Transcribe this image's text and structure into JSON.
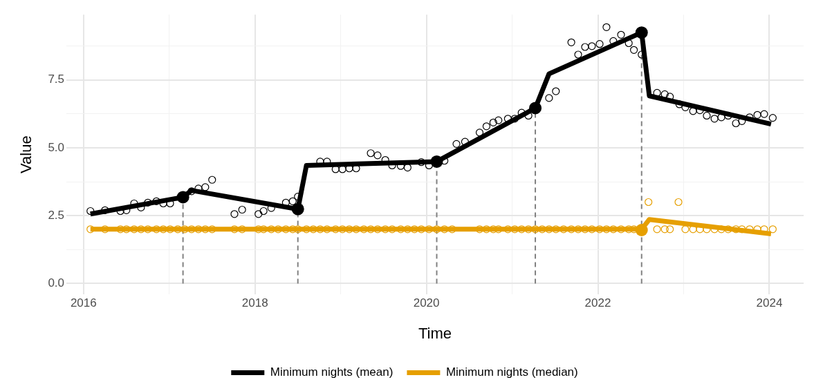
{
  "chart_data": {
    "type": "line",
    "xlabel": "Time",
    "ylabel": "Value",
    "xlim": [
      2015.8,
      2024.4
    ],
    "ylim": [
      -0.4,
      9.9
    ],
    "xticks": [
      2016,
      {
        "value": 2017,
        "label": null
      },
      2018,
      {
        "value": 2019,
        "label": null
      },
      2020,
      {
        "value": 2021,
        "label": null
      },
      2022,
      {
        "value": 2023,
        "label": null
      },
      2024
    ],
    "yticks": [
      {
        "value": 0,
        "label": "0.0"
      },
      {
        "value": 1.25,
        "label": null
      },
      2.5,
      {
        "value": 3.75,
        "label": null
      },
      {
        "value": 5,
        "label": "5.0"
      },
      {
        "value": 6.25,
        "label": null
      },
      7.5,
      {
        "value": 8.75,
        "label": null
      }
    ],
    "grid": true,
    "legend": "bottom",
    "series": [
      {
        "type": "scatter",
        "marker": "circle",
        "color": "#000000",
        "x": [
          2016.08,
          2016.25,
          2016.43,
          2016.5,
          2016.59,
          2016.67,
          2016.75,
          2016.85,
          2016.93,
          2017.01,
          2017.26,
          2017.34,
          2017.42,
          2017.5,
          2017.76,
          2017.85,
          2018.04,
          2018.1,
          2018.19,
          2018.36,
          2018.44,
          2018.5,
          2018.76,
          2018.84,
          2018.94,
          2019.02,
          2019.1,
          2019.18,
          2019.35,
          2019.43,
          2019.52,
          2019.6,
          2019.7,
          2019.78,
          2019.94,
          2020.03,
          2020.21,
          2020.35,
          2020.45,
          2020.62,
          2020.7,
          2020.78,
          2020.84,
          2020.95,
          2021.03,
          2021.11,
          2021.19,
          2021.43,
          2021.51,
          2021.69,
          2021.77,
          2021.85,
          2021.93,
          2022.02,
          2022.1,
          2022.18,
          2022.27,
          2022.36,
          2022.42,
          2022.51,
          2022.69,
          2022.78,
          2022.84,
          2022.95,
          2023.02,
          2023.11,
          2023.19,
          2023.27,
          2023.36,
          2023.44,
          2023.52,
          2023.61,
          2023.68,
          2023.77,
          2023.86,
          2023.94,
          2024.04
        ],
        "values": [
          2.67,
          2.7,
          2.67,
          2.7,
          2.95,
          2.8,
          2.98,
          3.03,
          2.95,
          2.95,
          3.4,
          3.5,
          3.55,
          3.82,
          2.56,
          2.72,
          2.56,
          2.67,
          2.78,
          2.98,
          3.03,
          3.2,
          4.49,
          4.49,
          4.21,
          4.21,
          4.24,
          4.24,
          4.8,
          4.72,
          4.55,
          4.35,
          4.33,
          4.27,
          4.47,
          4.35,
          4.52,
          5.14,
          5.22,
          5.56,
          5.79,
          5.93,
          6.01,
          6.07,
          6.07,
          6.29,
          6.18,
          6.83,
          7.08,
          8.88,
          8.43,
          8.71,
          8.74,
          8.82,
          9.44,
          8.93,
          9.16,
          8.85,
          8.6,
          8.43,
          7.02,
          6.97,
          6.88,
          6.6,
          6.49,
          6.35,
          6.38,
          6.18,
          6.07,
          6.12,
          6.18,
          5.9,
          5.98,
          6.12,
          6.21,
          6.24,
          6.1
        ]
      },
      {
        "type": "scatter",
        "marker": "circle",
        "color": "#e69f00",
        "x": [
          2016.08,
          2016.25,
          2016.43,
          2016.5,
          2016.59,
          2016.67,
          2016.75,
          2016.85,
          2016.93,
          2017.01,
          2017.1,
          2017.18,
          2017.26,
          2017.34,
          2017.42,
          2017.5,
          2017.76,
          2017.85,
          2018.04,
          2018.1,
          2018.19,
          2018.27,
          2018.36,
          2018.44,
          2018.5,
          2018.6,
          2018.68,
          2018.76,
          2018.84,
          2018.94,
          2019.02,
          2019.1,
          2019.18,
          2019.27,
          2019.35,
          2019.43,
          2019.52,
          2019.6,
          2019.7,
          2019.78,
          2019.86,
          2019.94,
          2020.03,
          2020.12,
          2020.21,
          2020.3,
          2020.62,
          2020.7,
          2020.78,
          2020.84,
          2020.95,
          2021.03,
          2021.11,
          2021.19,
          2021.27,
          2021.35,
          2021.43,
          2021.51,
          2021.6,
          2021.69,
          2021.77,
          2021.85,
          2021.93,
          2022.02,
          2022.1,
          2022.18,
          2022.27,
          2022.36,
          2022.42,
          2022.59,
          2022.69,
          2022.78,
          2022.84,
          2022.94,
          2023.02,
          2023.11,
          2023.19,
          2023.27,
          2023.36,
          2023.44,
          2023.52,
          2023.61,
          2023.68,
          2023.77,
          2023.86,
          2023.94,
          2024.04
        ],
        "values": [
          2,
          2,
          2,
          2,
          2,
          2,
          2,
          2,
          2,
          2,
          2,
          2,
          2,
          2,
          2,
          2,
          2,
          2,
          2,
          2,
          2,
          2,
          2,
          2,
          2,
          2,
          2,
          2,
          2,
          2,
          2,
          2,
          2,
          2,
          2,
          2,
          2,
          2,
          2,
          2,
          2,
          2,
          2,
          2,
          2,
          2,
          2,
          2,
          2,
          2,
          2,
          2,
          2,
          2,
          2,
          2,
          2,
          2,
          2,
          2,
          2,
          2,
          2,
          2,
          2,
          2,
          2,
          2,
          2,
          3,
          2,
          2,
          2,
          3,
          2,
          2,
          2,
          2,
          2,
          2,
          2,
          2,
          2,
          2,
          2,
          2,
          2
        ]
      },
      {
        "type": "line",
        "line_style": "dashed",
        "color": "#808080",
        "x": [
          2017.16,
          2017.16
        ],
        "values": [
          0,
          3.18
        ]
      },
      {
        "type": "line",
        "line_style": "dashed",
        "color": "#808080",
        "x": [
          2018.5,
          2018.5
        ],
        "values": [
          0,
          2.74
        ]
      },
      {
        "type": "line",
        "line_style": "dashed",
        "color": "#808080",
        "x": [
          2020.12,
          2020.12
        ],
        "values": [
          0,
          4.49
        ]
      },
      {
        "type": "line",
        "line_style": "dashed",
        "color": "#808080",
        "x": [
          2021.27,
          2021.27
        ],
        "values": [
          0,
          6.46
        ]
      },
      {
        "type": "line",
        "line_style": "dashed",
        "color": "#808080",
        "x": [
          2022.51,
          2022.51
        ],
        "values": [
          0,
          9.24
        ]
      },
      {
        "name": "Minimum nights (mean)",
        "type": "line",
        "line_style": "solid",
        "color": "#000000",
        "x": [
          2016.08,
          2017.16,
          2017.26,
          2018.5,
          2018.6,
          2020.12,
          2021.27,
          2021.43,
          2022.51,
          2022.6,
          2024.02
        ],
        "values": [
          2.56,
          3.18,
          3.43,
          2.74,
          4.35,
          4.49,
          6.46,
          7.72,
          9.24,
          6.91,
          5.87
        ]
      },
      {
        "name": "Minimum nights (median)",
        "type": "line",
        "line_style": "solid",
        "color": "#e69f00",
        "x": [
          2016.08,
          2022.51,
          2022.6,
          2024.02
        ],
        "values": [
          2.0,
          2.0,
          2.36,
          1.83
        ]
      },
      {
        "type": "scatter",
        "marker": "circle",
        "color": "#000000",
        "x": [
          2017.16,
          2018.5,
          2020.12,
          2021.27,
          2022.51
        ],
        "values": [
          3.18,
          2.74,
          4.49,
          6.46,
          9.24
        ]
      },
      {
        "type": "scatter",
        "marker": "circle",
        "color": "#e69f00",
        "x": [
          2022.51
        ],
        "values": [
          1.97
        ]
      }
    ]
  }
}
